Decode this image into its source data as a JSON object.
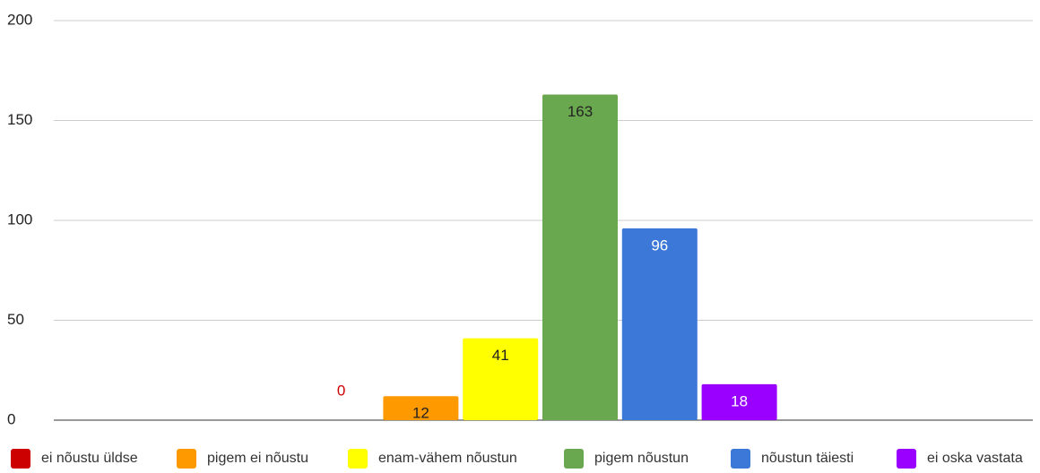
{
  "chart_data": {
    "type": "bar",
    "categories": [
      null
    ],
    "series": [
      {
        "name": "ei nõustu üldse",
        "color": "#cc0000",
        "values": [
          0
        ]
      },
      {
        "name": "pigem ei nõustu",
        "color": "#ff9900",
        "values": [
          12
        ]
      },
      {
        "name": "enam-vähem nõustun",
        "color": "#ffff00",
        "values": [
          41
        ]
      },
      {
        "name": "pigem nõustun",
        "color": "#6aa84f",
        "values": [
          163
        ]
      },
      {
        "name": "nõustun täiesti",
        "color": "#3c78d8",
        "values": [
          96
        ]
      },
      {
        "name": "ei oska vastata",
        "color": "#9900ff",
        "values": [
          18
        ]
      }
    ],
    "ylim": [
      0,
      200
    ],
    "yticks": [
      0,
      50,
      100,
      150,
      200
    ],
    "grid": true,
    "legend": "bottom"
  }
}
